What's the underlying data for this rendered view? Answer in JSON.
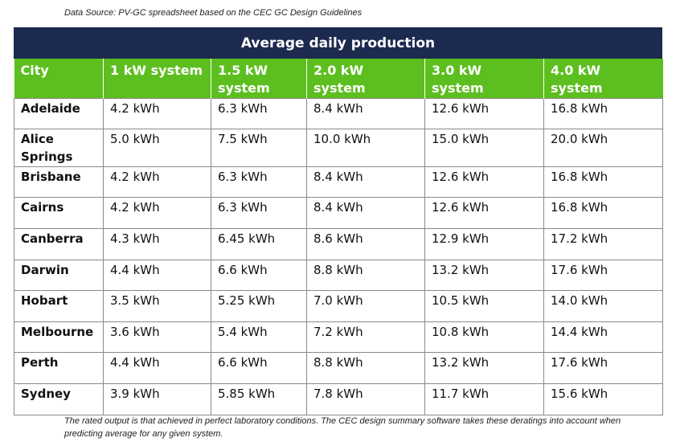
{
  "source_note": "Data Source: PV-GC spreadsheet based on the CEC GC Design Guidelines",
  "table": {
    "title": "Average daily production",
    "headers": [
      "City",
      "1 kW system",
      "1.5 kW system",
      "2.0 kW system",
      "3.0 kW system",
      "4.0 kW system"
    ],
    "rows": [
      [
        "Adelaide",
        "4.2 kWh",
        "6.3 kWh",
        "8.4 kWh",
        "12.6 kWh",
        "16.8 kWh"
      ],
      [
        "Alice Springs",
        "5.0 kWh",
        "7.5 kWh",
        "10.0 kWh",
        "15.0 kWh",
        "20.0 kWh"
      ],
      [
        "Brisbane",
        "4.2 kWh",
        "6.3 kWh",
        "8.4 kWh",
        "12.6 kWh",
        "16.8 kWh"
      ],
      [
        "Cairns",
        "4.2 kWh",
        "6.3 kWh",
        "8.4 kWh",
        "12.6 kWh",
        "16.8 kWh"
      ],
      [
        "Canberra",
        "4.3 kWh",
        "6.45 kWh",
        "8.6 kWh",
        "12.9 kWh",
        "17.2 kWh"
      ],
      [
        "Darwin",
        "4.4 kWh",
        "6.6 kWh",
        "8.8 kWh",
        "13.2 kWh",
        "17.6 kWh"
      ],
      [
        "Hobart",
        "3.5 kWh",
        "5.25 kWh",
        "7.0 kWh",
        "10.5 kWh",
        "14.0 kWh"
      ],
      [
        "Melbourne",
        "3.6 kWh",
        "5.4 kWh",
        "7.2 kWh",
        "10.8 kWh",
        "14.4 kWh"
      ],
      [
        "Perth",
        "4.4 kWh",
        "6.6 kWh",
        "8.8 kWh",
        "13.2 kWh",
        "17.6 kWh"
      ],
      [
        "Sydney",
        "3.9 kWh",
        "5.85 kWh",
        "7.8 kWh",
        "11.7 kWh",
        "15.6 kWh"
      ]
    ]
  },
  "footnote": "The rated output is that achieved in perfect laboratory conditions. The CEC design summary software takes these deratings into account when predicting average for any given system.",
  "colors": {
    "title_bar": "#1c2a4f",
    "header_row": "#5cbf1f",
    "grid_lines": "#8a8a8a"
  }
}
